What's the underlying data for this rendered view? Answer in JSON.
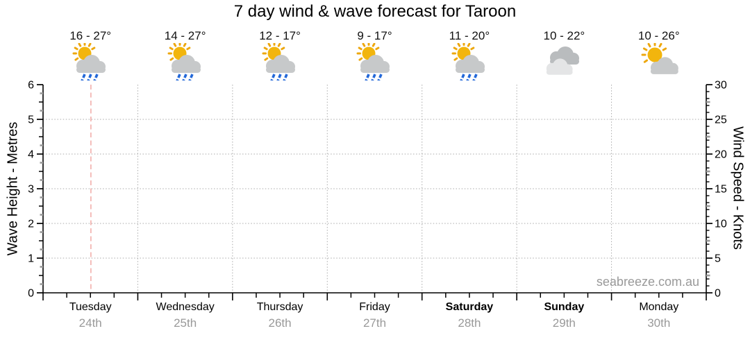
{
  "watermark": "seabreeze.com.au",
  "colors": {
    "sun": "#F2B50D",
    "sun_rays": "#EDA70E",
    "cloud": "#C7C9CA",
    "cloud_dark": "#B9BCBE",
    "cloud_light": "#E4E5E6",
    "rain": "#2368D9",
    "grid": "#A9A9A9",
    "day_boundary": "#A9A9A9",
    "now_line": "#F2AEAA",
    "axis": "#000000",
    "minor_tick_gray": "#9A9A9A",
    "temp_text": "#111111",
    "date_text": "#999999",
    "watermark_text": "#999999"
  },
  "chart_data": {
    "type": "table",
    "title": "7 day wind & wave forecast for Taroon",
    "location": "Taroon",
    "days": [
      {
        "name": "Tuesday",
        "date": "24th",
        "temp": "16 - 27°",
        "icon": "sun-cloud-rain",
        "weekend": false
      },
      {
        "name": "Wednesday",
        "date": "25th",
        "temp": "14 - 27°",
        "icon": "sun-cloud-rain",
        "weekend": false
      },
      {
        "name": "Thursday",
        "date": "26th",
        "temp": "12 - 17°",
        "icon": "sun-cloud-rain",
        "weekend": false
      },
      {
        "name": "Friday",
        "date": "27th",
        "temp": "9 - 17°",
        "icon": "sun-cloud-rain",
        "weekend": false
      },
      {
        "name": "Saturday",
        "date": "28th",
        "temp": "11 - 20°",
        "icon": "sun-cloud-rain",
        "weekend": true
      },
      {
        "name": "Sunday",
        "date": "29th",
        "temp": "10 - 22°",
        "icon": "cloudy",
        "weekend": true
      },
      {
        "name": "Monday",
        "date": "30th",
        "temp": "10 - 26°",
        "icon": "sun-cloud",
        "weekend": false
      }
    ],
    "left_axis": {
      "label": "Wave Height - Metres",
      "min": 0,
      "max": 6,
      "major_tick_step": 1,
      "ticks": [
        0,
        1,
        2,
        3,
        4,
        5,
        6
      ]
    },
    "right_axis": {
      "label": "Wind Speed - Knots",
      "min": 0,
      "max": 30,
      "major_tick_step": 5,
      "ticks": [
        0,
        5,
        10,
        15,
        20,
        25,
        30
      ]
    },
    "series": [],
    "series_note": "plot area contains no plotted wave/wind curves, only gridlines",
    "grid": true,
    "legend": null,
    "now_marker": {
      "day_index": 0,
      "day_fraction": 0.505
    }
  }
}
